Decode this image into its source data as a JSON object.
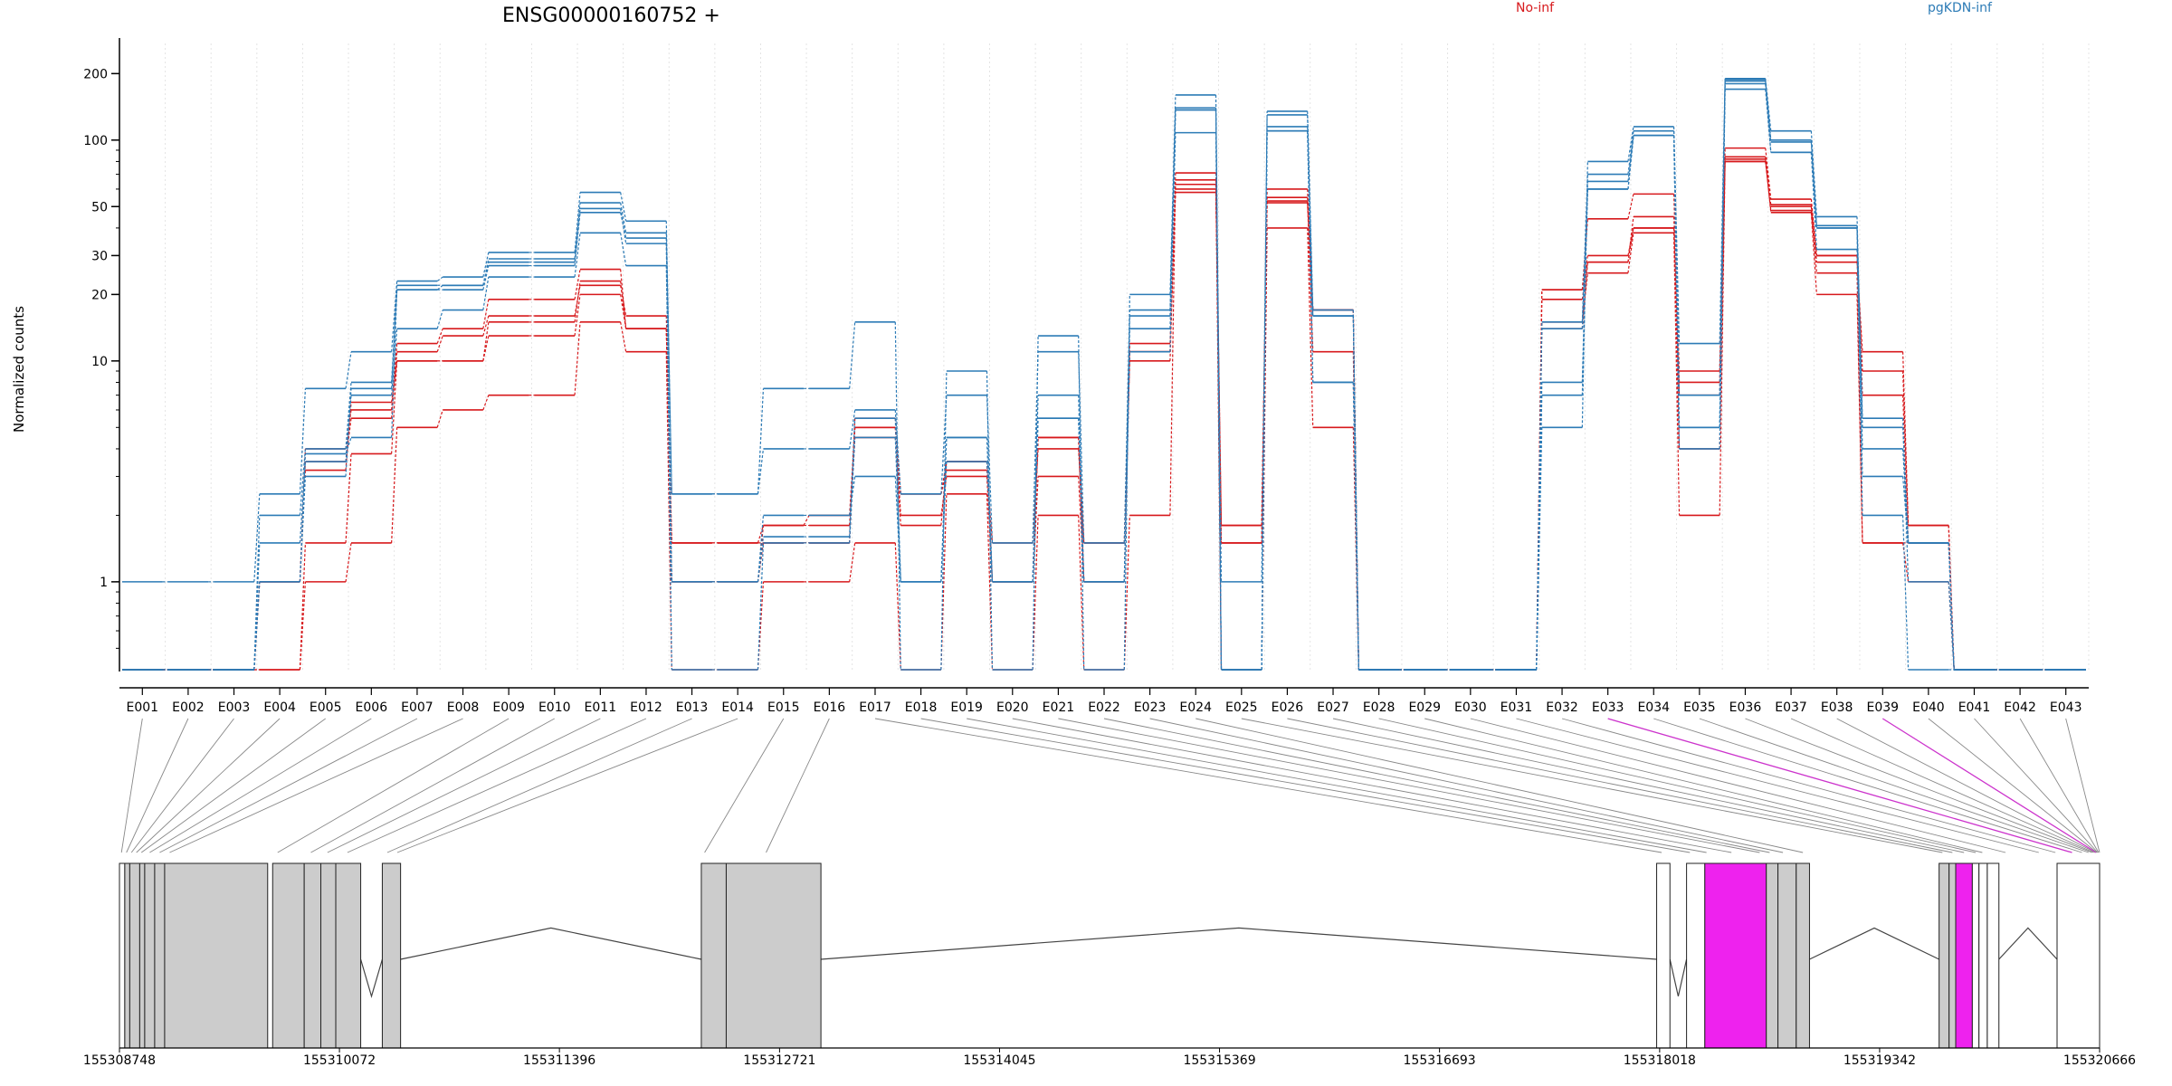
{
  "chart_data": {
    "type": "line",
    "title": "ENSG00000160752 +",
    "ylabel": "Normalized counts",
    "xlabel": "",
    "y_scale": "log",
    "y_ticks": [
      1,
      10,
      20,
      30,
      50,
      100,
      200
    ],
    "y_tick_labels": [
      "1",
      "10",
      "20",
      "30",
      "50",
      "100",
      "200"
    ],
    "ylim": [
      0.4,
      240
    ],
    "zero_floor_value": 0.4,
    "grid": "vertical dotted lines at exon boundaries",
    "legend_position": "top-right",
    "categories": [
      "E001",
      "E002",
      "E003",
      "E004",
      "E005",
      "E006",
      "E007",
      "E008",
      "E009",
      "E010",
      "E011",
      "E012",
      "E013",
      "E014",
      "E015",
      "E016",
      "E017",
      "E018",
      "E019",
      "E020",
      "E021",
      "E022",
      "E023",
      "E024",
      "E025",
      "E026",
      "E027",
      "E028",
      "E029",
      "E030",
      "E031",
      "E032",
      "E033",
      "E034",
      "E035",
      "E036",
      "E037",
      "E038",
      "E039",
      "E040",
      "E041",
      "E042",
      "E043"
    ],
    "highlighted_exons": [
      "E033",
      "E039"
    ],
    "groups": [
      {
        "name": "No-inf",
        "color": "#d7191c"
      },
      {
        "name": "pgKDN-inf",
        "color": "#2c7bb6"
      }
    ],
    "series": [
      {
        "group": "No-inf",
        "values": [
          0.4,
          0.4,
          0.4,
          1,
          3.5,
          5.5,
          11,
          13,
          16,
          16,
          22,
          16,
          1.5,
          1.5,
          1.8,
          1.8,
          4.5,
          1.8,
          3.5,
          1,
          4.5,
          1,
          11,
          63,
          1.8,
          55,
          17,
          0.4,
          0.4,
          0.4,
          0.4,
          19,
          28,
          45,
          8,
          92,
          54,
          30,
          9,
          1.8,
          0.4,
          0.4,
          0.4
        ]
      },
      {
        "group": "No-inf",
        "values": [
          0.4,
          0.4,
          0.4,
          1,
          4,
          6,
          12,
          14,
          19,
          19,
          26,
          14,
          1,
          1,
          1.5,
          1.5,
          5,
          2.5,
          3.2,
          1.5,
          4,
          1.5,
          12,
          60,
          1.5,
          60,
          17,
          0.4,
          0.4,
          0.4,
          0.4,
          21,
          44,
          57,
          9,
          84,
          50,
          28,
          11,
          1.8,
          0.4,
          0.4,
          0.4
        ]
      },
      {
        "group": "No-inf",
        "values": [
          0.4,
          0.4,
          0.4,
          0.4,
          1.5,
          3.8,
          10,
          10,
          13,
          13,
          20,
          14,
          1,
          1,
          1.8,
          2,
          5,
          2,
          3,
          1,
          3,
          1,
          11,
          58,
          1.5,
          53,
          11,
          0.4,
          0.4,
          0.4,
          0.4,
          15,
          25,
          38,
          2,
          80,
          48,
          25,
          1.5,
          1.5,
          0.4,
          0.4,
          0.4
        ]
      },
      {
        "group": "No-inf",
        "values": [
          0.4,
          0.4,
          0.4,
          0.4,
          1,
          1.5,
          5,
          6,
          7,
          7,
          15,
          11,
          0.4,
          0.4,
          1,
          1,
          1.5,
          0.4,
          2.5,
          0.4,
          2,
          0.4,
          2,
          66,
          0.4,
          40,
          5,
          0.4,
          0.4,
          0.4,
          0.4,
          14,
          28,
          40,
          4,
          82,
          47,
          20,
          1.5,
          1,
          0.4,
          0.4,
          0.4
        ]
      },
      {
        "group": "No-inf",
        "values": [
          0.4,
          0.4,
          0.4,
          1,
          3.2,
          6.5,
          10,
          10,
          15,
          15,
          23,
          14,
          1.5,
          1.5,
          1.5,
          1.5,
          5.5,
          2.5,
          3.5,
          1,
          4.5,
          1.5,
          10,
          71,
          1.8,
          52,
          17,
          0.4,
          0.4,
          0.4,
          0.4,
          21,
          30,
          40,
          7,
          80,
          51,
          30,
          7,
          1.5,
          0.4,
          0.4,
          0.4
        ]
      },
      {
        "group": "pgKDN-inf",
        "values": [
          1,
          1,
          1,
          2.5,
          7.5,
          11,
          23,
          24,
          31,
          31,
          58,
          43,
          2.5,
          2.5,
          7.5,
          7.5,
          15,
          0.4,
          9,
          0.4,
          13,
          0.4,
          20,
          160,
          0.4,
          135,
          17,
          0.4,
          0.4,
          0.4,
          0.4,
          5,
          80,
          115,
          12,
          190,
          110,
          45,
          5,
          1.5,
          0.4,
          0.4,
          0.4
        ]
      },
      {
        "group": "pgKDN-inf",
        "values": [
          0.4,
          0.4,
          0.4,
          2,
          4,
          8,
          22,
          22,
          29,
          29,
          52,
          38,
          2.5,
          2.5,
          4,
          4,
          6,
          2.5,
          7,
          1.5,
          11,
          1.5,
          17,
          140,
          1,
          130,
          16,
          0.4,
          0.4,
          0.4,
          0.4,
          15,
          70,
          110,
          7,
          185,
          100,
          41,
          4,
          1.5,
          0.4,
          0.4,
          0.4
        ]
      },
      {
        "group": "pgKDN-inf",
        "values": [
          0.4,
          0.4,
          0.4,
          1.5,
          3.5,
          7,
          14,
          17,
          24,
          24,
          38,
          27,
          1,
          1,
          2,
          2,
          3,
          1,
          3.5,
          1,
          7,
          1,
          14,
          108,
          0.4,
          115,
          8,
          0.4,
          0.4,
          0.4,
          0.4,
          8,
          65,
          105,
          4,
          170,
          88,
          32,
          3,
          1.5,
          0.4,
          0.4,
          0.4
        ]
      },
      {
        "group": "pgKDN-inf",
        "values": [
          0.4,
          0.4,
          0.4,
          1,
          3.8,
          4.5,
          21,
          22,
          28,
          28,
          49,
          34,
          1,
          1,
          1.6,
          1.6,
          5.5,
          1,
          4.5,
          1,
          5.5,
          1,
          16,
          137,
          0.4,
          110,
          16,
          0.4,
          0.4,
          0.4,
          0.4,
          14,
          60,
          105,
          5,
          188,
          98,
          40,
          2,
          0.4,
          0.4,
          0.4,
          0.4
        ]
      },
      {
        "group": "pgKDN-inf",
        "values": [
          0.4,
          0.4,
          0.4,
          1,
          3,
          7.5,
          21,
          21,
          27,
          27,
          47,
          36,
          0.4,
          0.4,
          1.5,
          1.5,
          4.5,
          1,
          4.5,
          1,
          5.5,
          1,
          11,
          137,
          0.4,
          110,
          8,
          0.4,
          0.4,
          0.4,
          0.4,
          7,
          60,
          105,
          5,
          180,
          88,
          40,
          5.5,
          1,
          0.4,
          0.4,
          0.4
        ]
      }
    ],
    "gene_model": {
      "coordinate_ticks": [
        "155308748",
        "155310072",
        "155311396",
        "155312721",
        "155314045",
        "155315369",
        "155316693",
        "155318018",
        "155319342",
        "155320666"
      ],
      "coord_range": [
        155308748,
        155320666
      ],
      "exon_blocks": [
        {
          "start": 155308748,
          "end": 155308780,
          "fill": "#ffffff"
        },
        {
          "start": 155308780,
          "end": 155308810,
          "fill": "#cccccc"
        },
        {
          "start": 155308810,
          "end": 155308870,
          "fill": "#cccccc"
        },
        {
          "start": 155308870,
          "end": 155308900,
          "fill": "#cccccc"
        },
        {
          "start": 155308900,
          "end": 155308960,
          "fill": "#cccccc"
        },
        {
          "start": 155308960,
          "end": 155309020,
          "fill": "#cccccc"
        },
        {
          "start": 155309020,
          "end": 155309640,
          "fill": "#cccccc"
        },
        {
          "start": 155309670,
          "end": 155309860,
          "fill": "#cccccc"
        },
        {
          "start": 155309860,
          "end": 155309960,
          "fill": "#cccccc"
        },
        {
          "start": 155309960,
          "end": 155310050,
          "fill": "#cccccc"
        },
        {
          "start": 155310050,
          "end": 155310200,
          "fill": "#cccccc"
        },
        {
          "start": 155310330,
          "end": 155310440,
          "fill": "#cccccc"
        },
        {
          "start": 155312250,
          "end": 155312400,
          "fill": "#cccccc"
        },
        {
          "start": 155312400,
          "end": 155312970,
          "fill": "#cccccc"
        },
        {
          "start": 155318000,
          "end": 155318080,
          "fill": "#ffffff"
        },
        {
          "start": 155318180,
          "end": 155318290,
          "fill": "#ffffff"
        },
        {
          "start": 155318290,
          "end": 155318660,
          "fill": "#ee22ee"
        },
        {
          "start": 155318660,
          "end": 155318730,
          "fill": "#cccccc"
        },
        {
          "start": 155318730,
          "end": 155318840,
          "fill": "#cccccc"
        },
        {
          "start": 155318840,
          "end": 155318920,
          "fill": "#cccccc"
        },
        {
          "start": 155319700,
          "end": 155319760,
          "fill": "#cccccc"
        },
        {
          "start": 155319760,
          "end": 155319800,
          "fill": "#cccccc"
        },
        {
          "start": 155319800,
          "end": 155319900,
          "fill": "#ee22ee"
        },
        {
          "start": 155319900,
          "end": 155319940,
          "fill": "#ffffff"
        },
        {
          "start": 155319940,
          "end": 155319990,
          "fill": "#ffffff"
        },
        {
          "start": 155319990,
          "end": 155320060,
          "fill": "#ffffff"
        },
        {
          "start": 155320410,
          "end": 155320666,
          "fill": "#ffffff"
        }
      ],
      "intron_peaks": [
        {
          "from": 155310200,
          "to": 155310330,
          "peak": 0.72
        },
        {
          "from": 155310440,
          "to": 155312250,
          "peak": 0.35
        },
        {
          "from": 155312970,
          "to": 155318000,
          "peak": 0.35
        },
        {
          "from": 155318080,
          "to": 155318180,
          "peak": 0.72
        },
        {
          "from": 155318920,
          "to": 155319700,
          "peak": 0.35
        },
        {
          "from": 155320060,
          "to": 155320410,
          "peak": 0.35
        }
      ],
      "exon_positions": [
        155308760,
        155308790,
        155308820,
        155308850,
        155308880,
        155308930,
        155308990,
        155309050,
        155309700,
        155309900,
        155310000,
        155310120,
        155310360,
        155310420,
        155312270,
        155312640,
        155318030,
        155318200,
        155318300,
        155318450,
        155318620,
        155318680,
        155318760,
        155318880,
        155319720,
        155319780,
        155319850,
        155319920,
        155319960,
        155320100,
        155320300,
        155320400,
        155320500,
        155320560,
        155320600,
        155320620,
        155320630,
        155320640,
        155320645,
        155320650,
        155320655,
        155320660,
        155320666
      ]
    }
  }
}
